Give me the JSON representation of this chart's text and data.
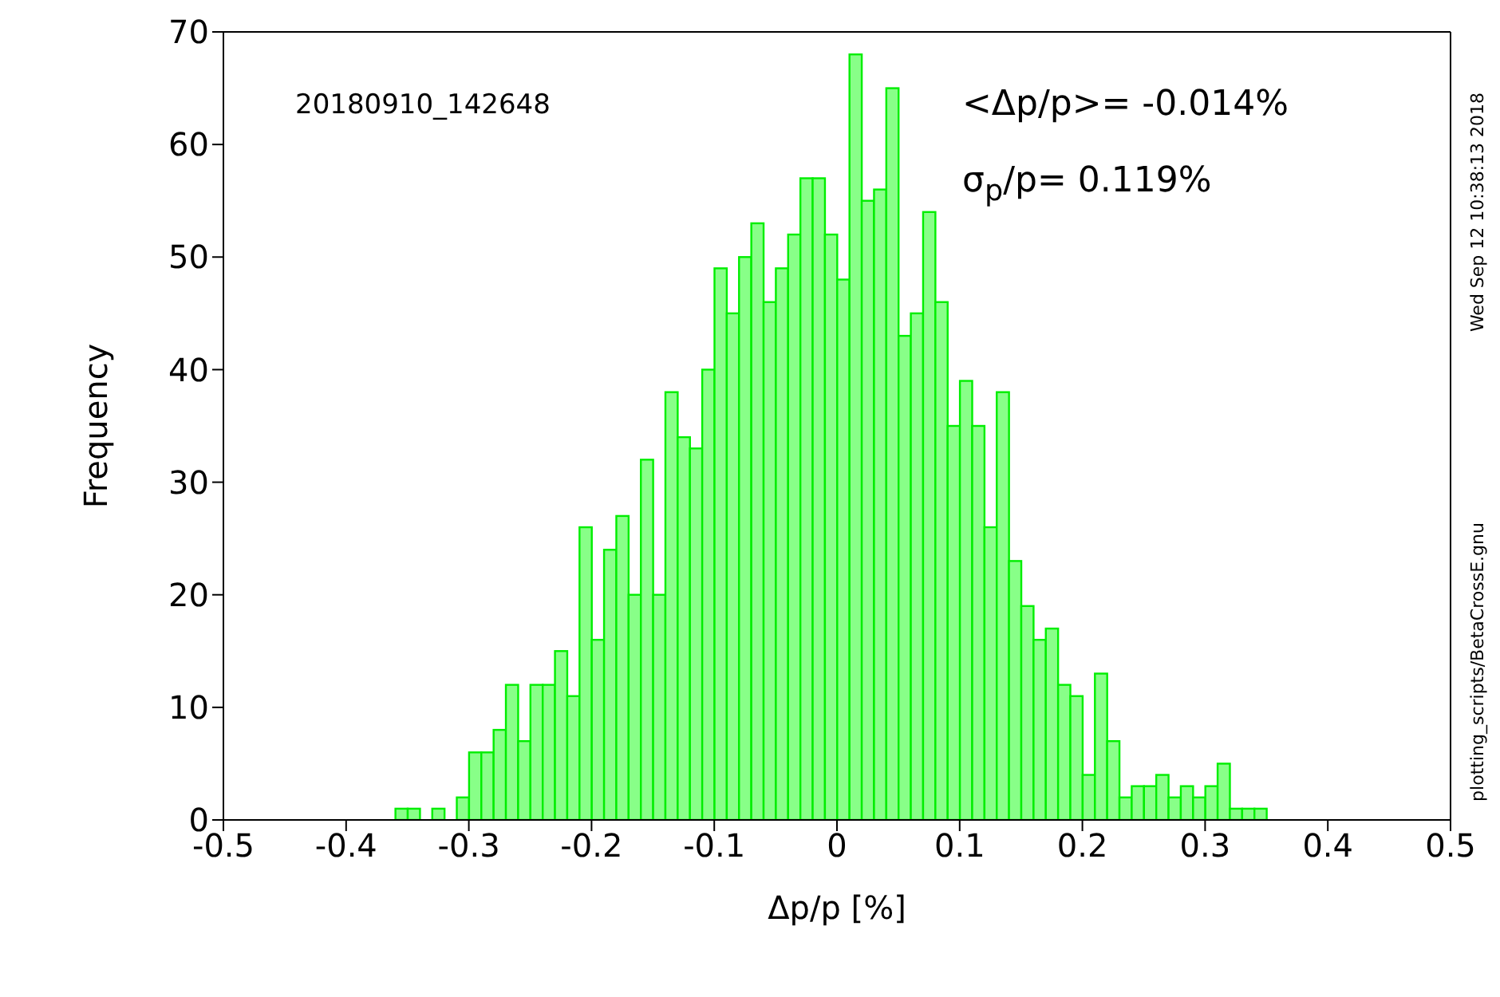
{
  "chart_data": {
    "type": "histogram",
    "xlabel": "Δp/p [%]",
    "ylabel": "Frequency",
    "bins": [
      -0.36,
      -0.35,
      -0.34,
      -0.33,
      -0.32,
      -0.31,
      -0.3,
      -0.29,
      -0.28,
      -0.27,
      -0.26,
      -0.25,
      -0.24,
      -0.23,
      -0.22,
      -0.21,
      -0.2,
      -0.19,
      -0.18,
      -0.17,
      -0.16,
      -0.15,
      -0.14,
      -0.13,
      -0.12,
      -0.11,
      -0.1,
      -0.09,
      -0.08,
      -0.07,
      -0.06,
      -0.05,
      -0.04,
      -0.03,
      -0.02,
      -0.01,
      0.0,
      0.01,
      0.02,
      0.03,
      0.04,
      0.05,
      0.06,
      0.07,
      0.08,
      0.09,
      0.1,
      0.11,
      0.12,
      0.13,
      0.14,
      0.15,
      0.16,
      0.17,
      0.18,
      0.19,
      0.2,
      0.21,
      0.22,
      0.23,
      0.24,
      0.25,
      0.26,
      0.27,
      0.28,
      0.29,
      0.3,
      0.31,
      0.32,
      0.33,
      0.34,
      0.35
    ],
    "values": [
      1,
      1,
      0,
      1,
      0,
      2,
      6,
      6,
      8,
      12,
      7,
      12,
      12,
      15,
      11,
      26,
      16,
      24,
      27,
      20,
      32,
      20,
      38,
      34,
      33,
      40,
      49,
      45,
      50,
      53,
      46,
      49,
      52,
      57,
      57,
      52,
      48,
      68,
      55,
      56,
      65,
      43,
      45,
      54,
      46,
      35,
      39,
      35,
      26,
      38,
      23,
      19,
      16,
      17,
      12,
      11,
      4,
      13,
      7,
      2,
      3,
      3,
      4,
      2,
      3,
      2,
      3,
      5,
      1,
      1,
      1
    ],
    "color": "#88ff88",
    "xlim": [
      -0.5,
      0.5
    ],
    "xticks": [
      -0.5,
      -0.4,
      -0.3,
      -0.2,
      -0.1,
      0,
      0.1,
      0.2,
      0.3,
      0.4,
      0.5
    ],
    "ylim": [
      0,
      70
    ],
    "yticks": [
      0,
      10,
      20,
      30,
      40,
      50,
      60,
      70
    ],
    "grid": false,
    "legend": false,
    "annotations": [
      "20180910_142648",
      "<Δp/p>= -0.014%",
      "σ$_{p}$/p= 0.119%",
      "Wed Sep 12 10:38:13 2018",
      "plotting_scripts/BetaCrossE.gnu"
    ]
  }
}
